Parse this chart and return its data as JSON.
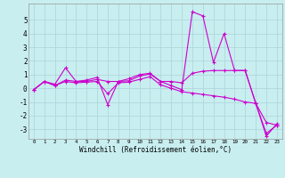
{
  "xlabel": "Windchill (Refroidissement éolien,°C)",
  "background_color": "#c8eef0",
  "grid_color": "#b0d8dc",
  "line_color": "#cc00cc",
  "xlim": [
    -0.5,
    23.5
  ],
  "ylim": [
    -3.7,
    6.2
  ],
  "yticks": [
    -3,
    -2,
    -1,
    0,
    1,
    2,
    3,
    4,
    5
  ],
  "xticks": [
    0,
    1,
    2,
    3,
    4,
    5,
    6,
    7,
    8,
    9,
    10,
    11,
    12,
    13,
    14,
    15,
    16,
    17,
    18,
    19,
    20,
    21,
    22,
    23
  ],
  "series1_x": [
    0,
    1,
    2,
    3,
    4,
    5,
    6,
    7,
    8,
    9,
    10,
    11,
    12,
    13,
    14,
    15,
    16,
    17,
    18,
    19,
    20,
    21,
    22,
    23
  ],
  "series1_y": [
    -0.1,
    0.5,
    0.3,
    1.5,
    0.5,
    0.6,
    0.8,
    -1.2,
    0.5,
    0.7,
    1.0,
    1.1,
    0.5,
    0.2,
    -0.1,
    5.6,
    5.3,
    1.9,
    4.0,
    1.3,
    1.3,
    -1.1,
    -3.3,
    -2.7
  ],
  "series2_x": [
    0,
    1,
    2,
    3,
    4,
    5,
    6,
    7,
    8,
    9,
    10,
    11,
    12,
    13,
    14,
    15,
    16,
    17,
    18,
    19,
    20,
    21,
    22,
    23
  ],
  "series2_y": [
    -0.1,
    0.5,
    0.2,
    0.6,
    0.5,
    0.5,
    0.65,
    0.5,
    0.5,
    0.55,
    0.9,
    1.05,
    0.5,
    0.5,
    0.4,
    1.1,
    1.25,
    1.3,
    1.3,
    1.3,
    1.3,
    -1.1,
    -3.5,
    -2.6
  ],
  "series3_x": [
    0,
    1,
    2,
    3,
    4,
    5,
    6,
    7,
    8,
    9,
    10,
    11,
    12,
    13,
    14,
    15,
    16,
    17,
    18,
    19,
    20,
    21,
    22,
    23
  ],
  "series3_y": [
    -0.1,
    0.5,
    0.2,
    0.5,
    0.4,
    0.45,
    0.5,
    -0.4,
    0.4,
    0.45,
    0.65,
    0.85,
    0.25,
    0.0,
    -0.25,
    -0.35,
    -0.45,
    -0.55,
    -0.65,
    -0.8,
    -1.0,
    -1.1,
    -2.5,
    -2.7
  ],
  "xlabel_fontsize": 5.5,
  "xtick_fontsize": 4.2,
  "ytick_fontsize": 5.5,
  "linewidth": 0.8,
  "markersize": 2.5
}
